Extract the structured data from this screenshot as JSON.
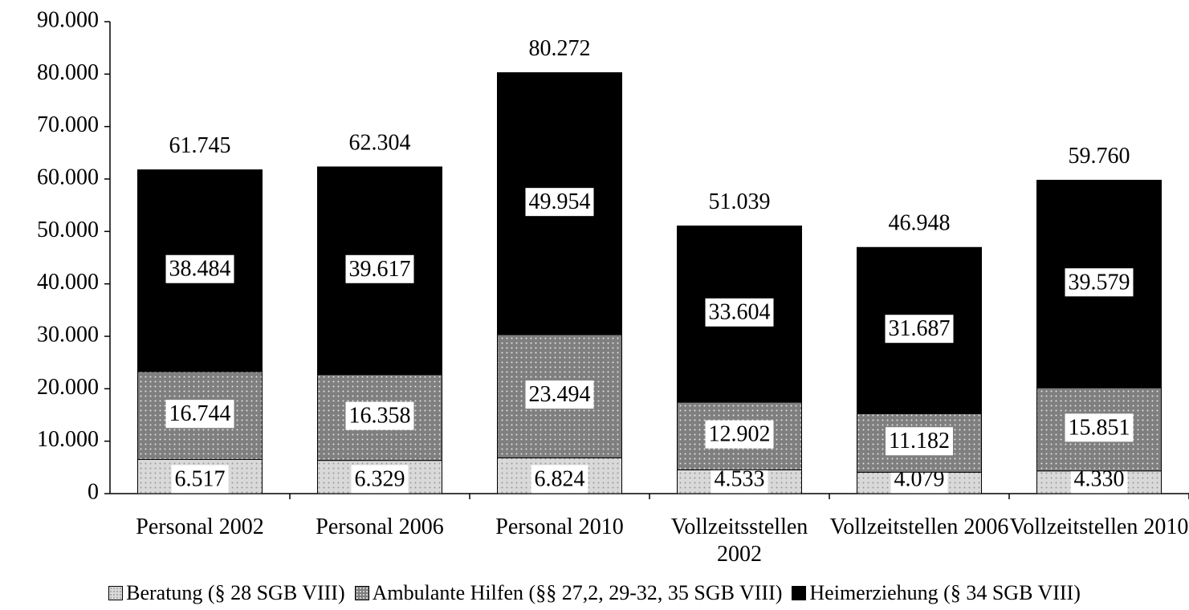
{
  "chart_data": {
    "type": "stacked_bar",
    "categories": [
      "Personal 2002",
      "Personal 2006",
      "Personal 2010",
      "Vollzeitsstellen 2002",
      "Vollzeitstellen 2006",
      "Vollzeitstellen 2010"
    ],
    "series": [
      {
        "name": "Beratung (§ 28 SGB VIII)",
        "color": "#d9d9d9",
        "values": [
          6517,
          6329,
          6824,
          4533,
          4079,
          4330
        ],
        "value_labels": [
          "6.517",
          "6.329",
          "6.824",
          "4.533",
          "4.079",
          "4.330"
        ]
      },
      {
        "name": "Ambulante Hilfen (§§ 27,2, 29-32, 35 SGB VIII)",
        "color": "#7f7f7f",
        "values": [
          16744,
          16358,
          23494,
          12902,
          11182,
          15851
        ],
        "value_labels": [
          "16.744",
          "16.358",
          "23.494",
          "12.902",
          "11.182",
          "15.851"
        ]
      },
      {
        "name": "Heimerziehung (§ 34 SGB VIII)",
        "color": "#000000",
        "values": [
          38484,
          39617,
          49954,
          33604,
          31687,
          39579
        ],
        "value_labels": [
          "38.484",
          "39.617",
          "49.954",
          "33.604",
          "31.687",
          "39.579"
        ]
      }
    ],
    "totals": {
      "values": [
        61745,
        62304,
        80272,
        51039,
        46948,
        59760
      ],
      "value_labels": [
        "61.745",
        "62.304",
        "80.272",
        "51.039",
        "46.948",
        "59.760"
      ]
    },
    "ylim": [
      0,
      90000
    ],
    "yticks": [
      0,
      {
        "value": 10000,
        "label": "10.000"
      },
      {
        "value": 20000,
        "label": "20.000"
      },
      {
        "value": 30000,
        "label": "30.000"
      },
      {
        "value": 40000,
        "label": "40.000"
      },
      {
        "value": 50000,
        "label": "50.000"
      },
      {
        "value": 60000,
        "label": "60.000"
      },
      {
        "value": 70000,
        "label": "70.000"
      },
      {
        "value": 80000,
        "label": "80.000"
      },
      {
        "value": 90000,
        "label": "90.000"
      }
    ],
    "legend": "bottom"
  }
}
